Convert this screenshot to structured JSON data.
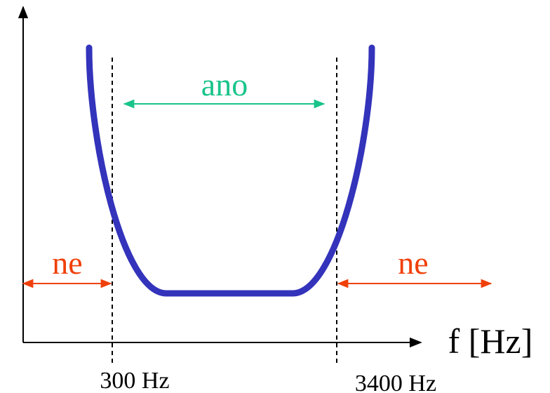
{
  "axis": {
    "x_label": "f [Hz]"
  },
  "markers": {
    "low_label": "300 Hz",
    "high_label": "3400 Hz"
  },
  "regions": {
    "pass_label": "ano",
    "stop_left_label": "ne",
    "stop_right_label": "ne"
  },
  "colors": {
    "curve": "#3333bb",
    "pass_arrow": "#19c48a",
    "stop_arrow": "#f0400a",
    "axis": "#000000"
  }
}
